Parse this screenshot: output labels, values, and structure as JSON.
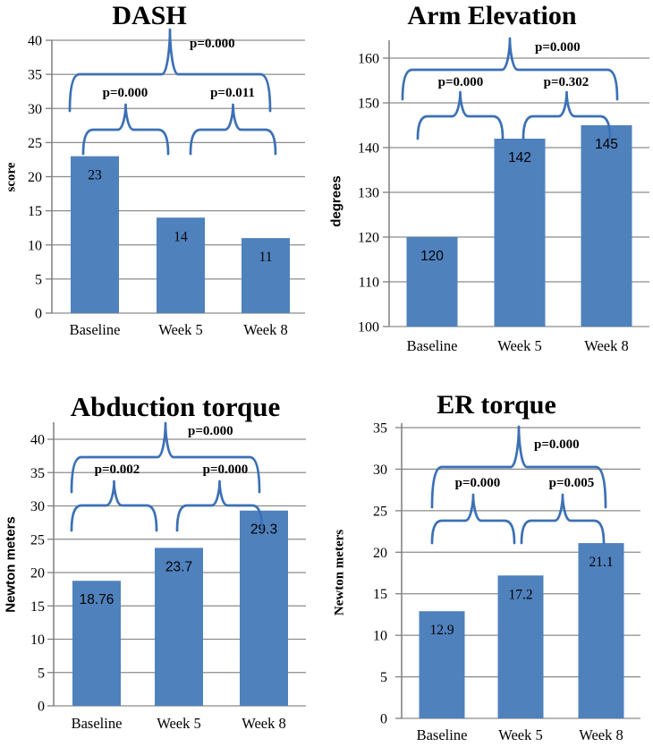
{
  "page": {
    "background": "#ffffff"
  },
  "colors": {
    "bar": "#4f81bd",
    "brace": "#3b70b5",
    "grid": "#8c8c8c",
    "axis": "#7f7f7f",
    "text": "#000000"
  },
  "chart_data": [
    {
      "type": "bar",
      "title": "DASH",
      "ylabel": "score",
      "xlabel": "",
      "categories": [
        "Baseline",
        "Week 5",
        "Week 8"
      ],
      "values": [
        23,
        14,
        11
      ],
      "value_labels": [
        "23",
        "14",
        "11"
      ],
      "ylim": [
        0,
        40
      ],
      "ystep": 5,
      "ytick_labels": [
        "0",
        "5",
        "10",
        "15",
        "20",
        "25",
        "30",
        "35",
        "40"
      ],
      "grid": true,
      "legend": false,
      "annotations": [
        {
          "label": "p=0.000",
          "from": "Baseline",
          "to": "Week 8",
          "tier": "outer"
        },
        {
          "label": "p=0.000",
          "from": "Baseline",
          "to": "Week 5",
          "tier": "inner"
        },
        {
          "label": "p=0.011",
          "from": "Week 5",
          "to": "Week 8",
          "tier": "inner"
        }
      ]
    },
    {
      "type": "bar",
      "title": "Arm Elevation",
      "ylabel": "degrees",
      "xlabel": "",
      "categories": [
        "Baseline",
        "Week 5",
        "Week 8"
      ],
      "values": [
        120,
        142,
        145
      ],
      "value_labels": [
        "120",
        "142",
        "145"
      ],
      "ylim": [
        100,
        160
      ],
      "ystep": 10,
      "ytick_labels": [
        "100",
        "110",
        "120",
        "130",
        "140",
        "150",
        "160"
      ],
      "grid": true,
      "legend": false,
      "annotations": [
        {
          "label": "p=0.000",
          "from": "Baseline",
          "to": "Week 8",
          "tier": "outer"
        },
        {
          "label": "p=0.000",
          "from": "Baseline",
          "to": "Week 5",
          "tier": "inner"
        },
        {
          "label": "p=0.302",
          "from": "Week 5",
          "to": "Week 8",
          "tier": "inner"
        }
      ]
    },
    {
      "type": "bar",
      "title": "Abduction torque",
      "ylabel": "Newton meters",
      "xlabel": "",
      "categories": [
        "Baseline",
        "Week 5",
        "Week 8"
      ],
      "values": [
        18.76,
        23.7,
        29.3
      ],
      "value_labels": [
        "18.76",
        "23.7",
        "29.3"
      ],
      "ylim": [
        0,
        40
      ],
      "ystep": 5,
      "ytick_labels": [
        "0",
        "5",
        "10",
        "15",
        "20",
        "25",
        "30",
        "35",
        "40"
      ],
      "grid": true,
      "legend": false,
      "annotations": [
        {
          "label": "p=0.000",
          "from": "Baseline",
          "to": "Week 8",
          "tier": "outer"
        },
        {
          "label": "p=0.002",
          "from": "Baseline",
          "to": "Week 5",
          "tier": "inner"
        },
        {
          "label": "p=0.000",
          "from": "Week 5",
          "to": "Week 8",
          "tier": "inner"
        }
      ]
    },
    {
      "type": "bar",
      "title": "ER torque",
      "ylabel": "Newton meters",
      "xlabel": "",
      "categories": [
        "Baseline",
        "Week 5",
        "Week 8"
      ],
      "values": [
        12.9,
        17.2,
        21.1
      ],
      "value_labels": [
        "12.9",
        "17.2",
        "21.1"
      ],
      "ylim": [
        0,
        35
      ],
      "ystep": 5,
      "ytick_labels": [
        "0",
        "5",
        "10",
        "15",
        "20",
        "25",
        "30",
        "35"
      ],
      "grid": true,
      "legend": false,
      "annotations": [
        {
          "label": "p=0.000",
          "from": "Baseline",
          "to": "Week 8",
          "tier": "outer"
        },
        {
          "label": "p=0.000",
          "from": "Baseline",
          "to": "Week 5",
          "tier": "inner"
        },
        {
          "label": "p=0.005",
          "from": "Week 5",
          "to": "Week 8",
          "tier": "inner"
        }
      ]
    }
  ]
}
